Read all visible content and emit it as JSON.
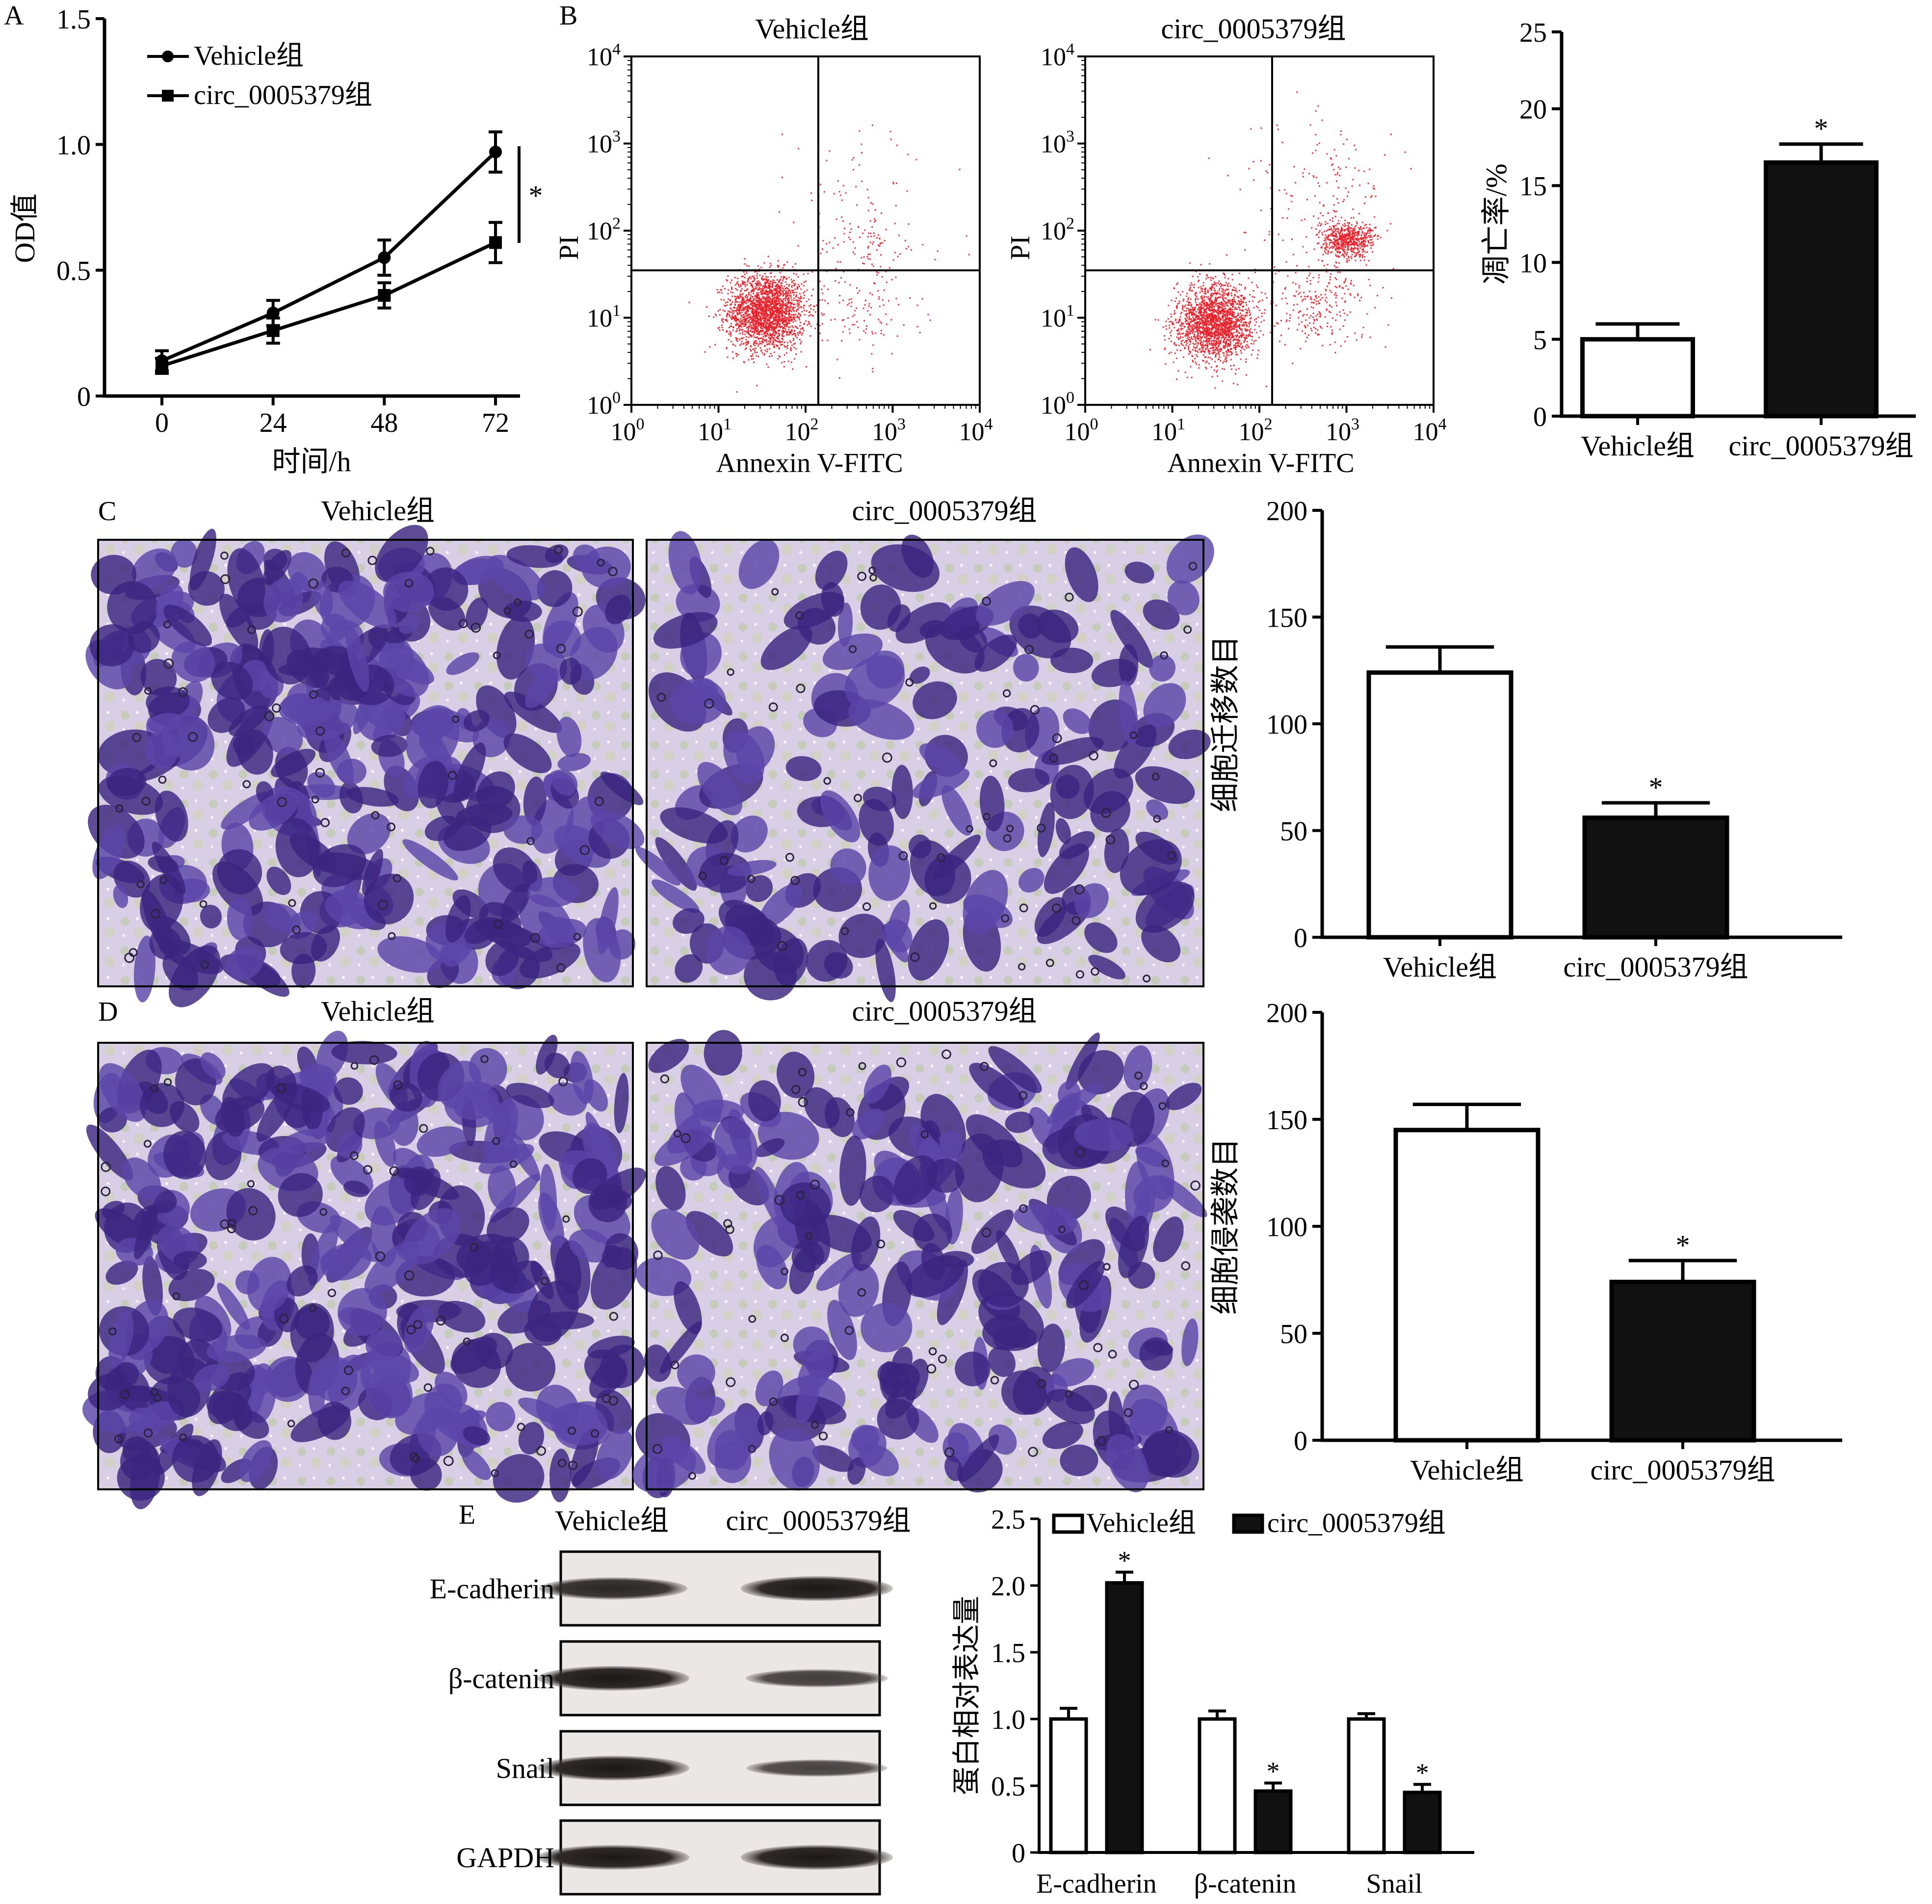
{
  "figure": {
    "panel_labels": {
      "A": "A",
      "B": "B",
      "C": "C",
      "D": "D",
      "E": "E"
    }
  },
  "colors": {
    "axis": "#000000",
    "vehicle_fill": "#ffffff",
    "circ_fill": "#111111",
    "dot_red": "#e8202a",
    "cell_stain_dark": "#3a2580",
    "cell_stain_mid": "#5a46a8",
    "membrane_bg": "#d8cfe6",
    "membrane_green": "#b8c896",
    "blot_bg": "#ebe7e4",
    "blot_band": "#2a2626"
  },
  "chart_data": [
    {
      "id": "A",
      "type": "line",
      "xlabel": "时间/h",
      "ylabel": "OD值",
      "x": [
        0,
        24,
        48,
        72
      ],
      "x_ticks": [
        "0",
        "24",
        "48",
        "72"
      ],
      "y_ticks": [
        "0",
        "0.5",
        "1.0",
        "1.5"
      ],
      "ylim": [
        0,
        1.5
      ],
      "series": [
        {
          "name": "Vehicle组",
          "marker": "circle",
          "values": [
            0.14,
            0.33,
            0.55,
            0.97
          ],
          "errors": [
            0.04,
            0.05,
            0.07,
            0.08
          ]
        },
        {
          "name": "circ_0005379组",
          "marker": "square",
          "values": [
            0.12,
            0.26,
            0.4,
            0.61
          ],
          "errors": [
            0.03,
            0.05,
            0.05,
            0.08
          ]
        }
      ],
      "annotation": "*",
      "legend_position": "top-left"
    },
    {
      "id": "B1",
      "type": "scatter",
      "title": "Vehicle组",
      "xlabel": "Annexin V-FITC",
      "ylabel": "PI",
      "scale": "log",
      "xlim": [
        1,
        10000
      ],
      "ylim": [
        1,
        10000
      ],
      "quadrant_gate": {
        "x": 140,
        "y": 35
      },
      "clusters": [
        {
          "cx": 35,
          "cy": 12,
          "n": 2200,
          "spread_x": 0.22,
          "spread_y": 0.22
        },
        {
          "cx": 500,
          "cy": 70,
          "n": 80,
          "spread_x": 0.3,
          "spread_y": 0.2
        },
        {
          "cx": 400,
          "cy": 12,
          "n": 120,
          "spread_x": 0.35,
          "spread_y": 0.3
        },
        {
          "cx": 500,
          "cy": 300,
          "n": 60,
          "spread_x": 0.45,
          "spread_y": 0.4
        }
      ]
    },
    {
      "id": "B2",
      "type": "scatter",
      "title": "circ_0005379组",
      "xlabel": "Annexin V-FITC",
      "ylabel": "PI",
      "scale": "log",
      "xlim": [
        1,
        10000
      ],
      "ylim": [
        1,
        10000
      ],
      "quadrant_gate": {
        "x": 140,
        "y": 35
      },
      "clusters": [
        {
          "cx": 30,
          "cy": 9,
          "n": 2000,
          "spread_x": 0.22,
          "spread_y": 0.22
        },
        {
          "cx": 1000,
          "cy": 80,
          "n": 600,
          "spread_x": 0.15,
          "spread_y": 0.1
        },
        {
          "cx": 500,
          "cy": 15,
          "n": 250,
          "spread_x": 0.3,
          "spread_y": 0.25
        },
        {
          "cx": 500,
          "cy": 300,
          "n": 150,
          "spread_x": 0.45,
          "spread_y": 0.4
        }
      ]
    },
    {
      "id": "B3",
      "type": "bar",
      "ylabel": "凋亡率/%",
      "categories": [
        "Vehicle组",
        "circ_0005379组"
      ],
      "values": [
        5.0,
        16.5
      ],
      "errors": [
        1.0,
        1.2
      ],
      "significance": [
        "",
        "*"
      ],
      "ylim": [
        0,
        25
      ],
      "y_ticks": [
        "0",
        "5",
        "10",
        "15",
        "20",
        "25"
      ]
    },
    {
      "id": "C",
      "type": "bar",
      "ylabel": "细胞迁移数目",
      "categories": [
        "Vehicle组",
        "circ_0005379组"
      ],
      "values": [
        124,
        56
      ],
      "errors": [
        12,
        7
      ],
      "significance": [
        "",
        "*"
      ],
      "ylim": [
        0,
        200
      ],
      "y_ticks": [
        "0",
        "50",
        "100",
        "150",
        "200"
      ]
    },
    {
      "id": "D",
      "type": "bar",
      "ylabel": "细胞侵袭数目",
      "categories": [
        "Vehicle组",
        "circ_0005379组"
      ],
      "values": [
        145,
        74
      ],
      "errors": [
        12,
        10
      ],
      "significance": [
        "",
        "*"
      ],
      "ylim": [
        0,
        200
      ],
      "y_ticks": [
        "0",
        "50",
        "100",
        "150",
        "200"
      ]
    },
    {
      "id": "E",
      "type": "bar",
      "ylabel": "蛋白相对表达量",
      "categories": [
        "E-cadherin",
        "β-catenin",
        "Snail"
      ],
      "series": [
        {
          "name": "Vehicle组",
          "values": [
            1.0,
            1.0,
            1.0
          ],
          "errors": [
            0.08,
            0.06,
            0.04
          ]
        },
        {
          "name": "circ_0005379组",
          "values": [
            2.02,
            0.46,
            0.45
          ],
          "errors": [
            0.08,
            0.06,
            0.06
          ]
        }
      ],
      "significance": [
        "*",
        "*",
        "*"
      ],
      "ylim": [
        0,
        2.5
      ],
      "y_ticks": [
        "0",
        "0.5",
        "1.0",
        "1.5",
        "2.0",
        "2.5"
      ],
      "legend_position": "top"
    }
  ],
  "micrographs": {
    "C": {
      "titles": [
        "Vehicle组",
        "circ_0005379组"
      ],
      "coverage": [
        0.55,
        0.3
      ]
    },
    "D": {
      "titles": [
        "Vehicle组",
        "circ_0005379组"
      ],
      "coverage": [
        0.55,
        0.38
      ]
    }
  },
  "western_blot": {
    "column_headers": [
      "Vehicle组",
      "circ_0005379组"
    ],
    "rows": [
      {
        "label": "E-cadherin",
        "intensity": [
          0.85,
          1.0
        ]
      },
      {
        "label": "β-catenin",
        "intensity": [
          1.0,
          0.6
        ]
      },
      {
        "label": "Snail",
        "intensity": [
          1.0,
          0.55
        ]
      },
      {
        "label": "GAPDH",
        "intensity": [
          1.0,
          1.0
        ]
      }
    ]
  },
  "flow_tick_labels": {
    "x": [
      "10",
      "10",
      "10",
      "10",
      "10"
    ],
    "x_exp": [
      "0",
      "1",
      "2",
      "3",
      "4"
    ],
    "y": [
      "10",
      "10",
      "10",
      "10",
      "10"
    ],
    "y_exp": [
      "0",
      "1",
      "2",
      "3",
      "4"
    ]
  }
}
